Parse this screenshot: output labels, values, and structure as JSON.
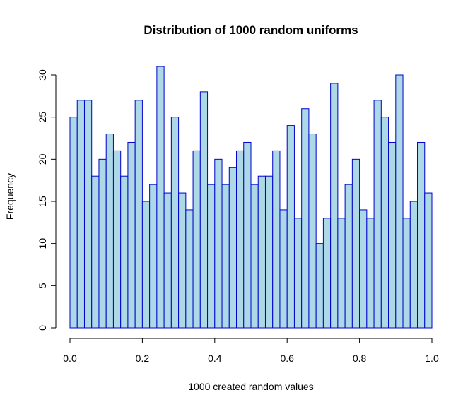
{
  "chart_data": {
    "type": "bar",
    "title": "Distribution of 1000 random uniforms",
    "xlabel": "1000 created random values",
    "ylabel": "Frequency",
    "bin_width": 0.02,
    "x_range": [
      0,
      1
    ],
    "y_range": [
      0,
      31
    ],
    "x_ticks": [
      0.0,
      0.2,
      0.4,
      0.6,
      0.8,
      1.0
    ],
    "x_tick_labels": [
      "0.0",
      "0.2",
      "0.4",
      "0.6",
      "0.8",
      "1.0"
    ],
    "y_ticks": [
      0,
      5,
      10,
      15,
      20,
      25,
      30
    ],
    "y_tick_labels": [
      "0",
      "5",
      "10",
      "15",
      "20",
      "25",
      "30"
    ],
    "bins_start": [
      0.0,
      0.02,
      0.04,
      0.06,
      0.08,
      0.1,
      0.12,
      0.14,
      0.16,
      0.18,
      0.2,
      0.22,
      0.24,
      0.26,
      0.28,
      0.3,
      0.32,
      0.34,
      0.36,
      0.38,
      0.4,
      0.42,
      0.44,
      0.46,
      0.48,
      0.5,
      0.52,
      0.54,
      0.56,
      0.58,
      0.6,
      0.62,
      0.64,
      0.66,
      0.68,
      0.7,
      0.72,
      0.74,
      0.76,
      0.78,
      0.8,
      0.82,
      0.84,
      0.86,
      0.88,
      0.9,
      0.92,
      0.94,
      0.96,
      0.98
    ],
    "values": [
      25,
      27,
      27,
      18,
      20,
      23,
      21,
      18,
      22,
      27,
      15,
      17,
      31,
      16,
      25,
      16,
      14,
      21,
      28,
      17,
      20,
      17,
      19,
      21,
      22,
      17,
      18,
      18,
      21,
      14,
      24,
      13,
      26,
      23,
      10,
      13,
      29,
      13,
      17,
      20,
      14,
      13,
      27,
      25,
      22,
      30,
      13,
      15,
      22,
      16
    ],
    "grid": false,
    "legend": "none",
    "colors": {
      "bar_fill": "#add8e6",
      "bar_border": "#0000cd"
    }
  }
}
